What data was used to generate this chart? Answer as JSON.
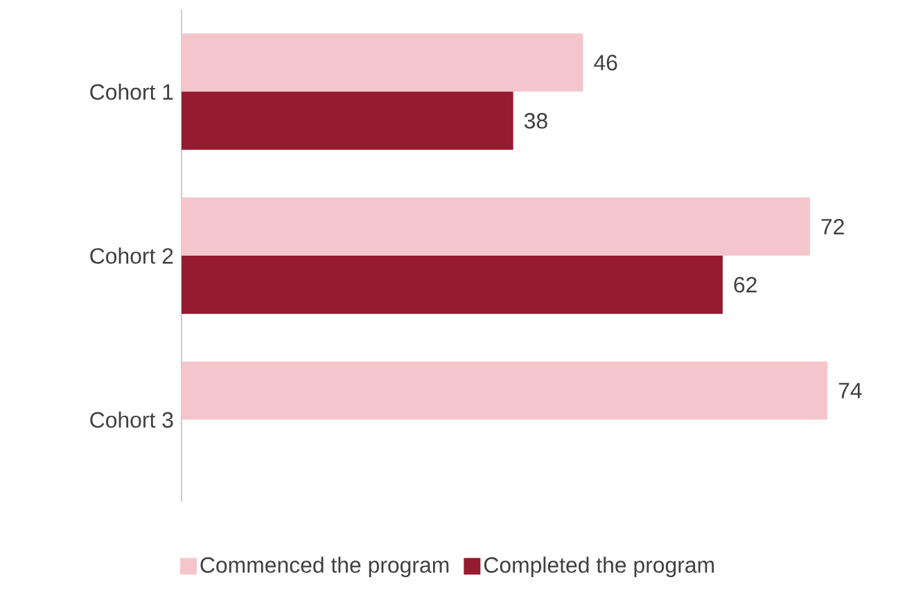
{
  "chart_data": {
    "type": "bar",
    "orientation": "horizontal",
    "categories": [
      "Cohort 1",
      "Cohort 2",
      "Cohort 3"
    ],
    "series": [
      {
        "name": "Commenced the program",
        "color": "#f4c6cc",
        "values": [
          46,
          72,
          74
        ]
      },
      {
        "name": "Completed the program",
        "color": "#961b2f",
        "values": [
          38,
          62,
          null
        ]
      }
    ],
    "data_labels": true,
    "legend": "bottom"
  }
}
